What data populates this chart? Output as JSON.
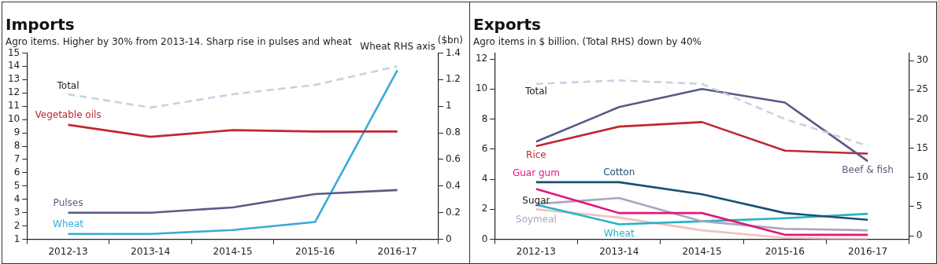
{
  "chart_data": [
    {
      "type": "line",
      "title": "Imports",
      "subtitle": "Agro items. Higher by 30% from 2013-14. Sharp rise in pulses and wheat",
      "y2label": "($bn)",
      "categories": [
        "2012-13",
        "2013-14",
        "2014-15",
        "2015-16",
        "2016-17"
      ],
      "series": [
        {
          "name": "Total",
          "color": "#c5d3e3",
          "line_style": "dashed",
          "values": [
            11.9,
            10.9,
            11.9,
            12.6,
            14.0
          ]
        },
        {
          "name": "Vegetable oils",
          "color": "#c0282d",
          "values": [
            9.6,
            8.7,
            9.2,
            9.1,
            9.1
          ]
        },
        {
          "name": "Pulses",
          "color": "#5a5a86",
          "values": [
            3.0,
            3.0,
            3.4,
            4.4,
            4.7
          ]
        },
        {
          "name": "Wheat",
          "color": "#3aaad8",
          "axis": "y2",
          "values": [
            0.04,
            0.04,
            0.07,
            0.13,
            1.27
          ]
        }
      ],
      "ylim": [
        1,
        15
      ],
      "yticks": [
        1,
        2,
        3,
        4,
        5,
        6,
        7,
        8,
        9,
        10,
        11,
        12,
        13,
        14,
        15
      ],
      "y2lim": [
        0,
        1.4
      ],
      "y2ticks": [
        0,
        0.2,
        0.4,
        0.6,
        0.8,
        1,
        1.2,
        1.4
      ],
      "annotations": [
        "Wheat RHS axis"
      ],
      "grid": false,
      "legend": false,
      "marker": "none"
    },
    {
      "type": "line",
      "title": "Exports",
      "subtitle": "Agro items in $ billion. (Total RHS) down by 40%",
      "categories": [
        "2012-13",
        "2013-14",
        "2014-15",
        "2015-16",
        "2016-17"
      ],
      "series": [
        {
          "name": "Total",
          "color": "#c5d3e3",
          "line_style": "dashed",
          "axis": "y2",
          "values": [
            26.0,
            26.6,
            26.0,
            20.0,
            15.4
          ]
        },
        {
          "name": "Beef & fish",
          "color": "#5a5a86",
          "values": [
            6.5,
            8.8,
            10.0,
            9.1,
            5.2
          ]
        },
        {
          "name": "Rice",
          "color": "#c0282d",
          "values": [
            6.2,
            7.5,
            7.8,
            5.9,
            5.7
          ]
        },
        {
          "name": "Guar gum",
          "color": "#e0187a",
          "values": [
            3.35,
            1.75,
            1.75,
            0.3,
            0.3
          ]
        },
        {
          "name": "Cotton",
          "color": "#1a4f72",
          "values": [
            3.8,
            3.8,
            3.0,
            1.75,
            1.3
          ]
        },
        {
          "name": "Soymeal",
          "color": "#a9a5c0",
          "values": [
            2.35,
            2.75,
            1.2,
            0.7,
            0.6
          ]
        },
        {
          "name": "Wheat",
          "color": "#20b5c5",
          "values": [
            2.3,
            1.0,
            1.2,
            1.4,
            1.7
          ]
        },
        {
          "name": "Sugar",
          "color": "#f1c0c0",
          "values": [
            2.0,
            1.45,
            0.6,
            0.1,
            0.0
          ]
        }
      ],
      "ylim": [
        0,
        12.4
      ],
      "yticks": [
        0,
        2,
        4,
        6,
        8,
        10,
        12
      ],
      "y2lim": [
        -0.6,
        31.3
      ],
      "y2ticks": [
        0,
        5,
        10,
        15,
        20,
        25,
        30
      ],
      "grid": false,
      "legend": false,
      "marker": "none"
    }
  ]
}
